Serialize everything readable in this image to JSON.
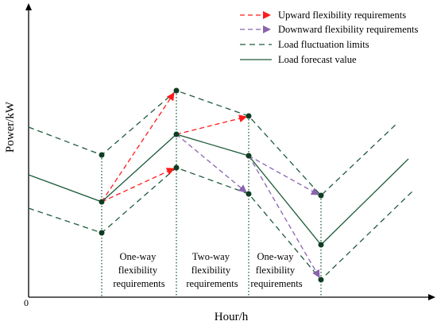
{
  "diagram": {
    "axes": {
      "y_label": "Power/kW",
      "x_label": "Hour/h",
      "origin_label": "0"
    },
    "legend": [
      {
        "label": "Upward flexibility requirements",
        "style": "red-dashed-arrow",
        "color": "#ff1a1a"
      },
      {
        "label": "Downward flexibility requirements",
        "style": "purple-dashed-arrow",
        "color": "#8a63ad"
      },
      {
        "label": "Load fluctuation limits",
        "style": "green-dashed-line",
        "color": "#1e5b3b"
      },
      {
        "label": "Load forecast value",
        "style": "green-solid-line",
        "color": "#1e5b3b"
      }
    ],
    "regions": [
      {
        "lines": [
          "One-way",
          "flexibility",
          "requirements"
        ]
      },
      {
        "lines": [
          "Two-way",
          "flexibility",
          "requirements"
        ]
      },
      {
        "lines": [
          "One-way",
          "flexibility",
          "requirements"
        ]
      }
    ],
    "colors": {
      "axis": "#000000",
      "load_lines": "#1e5b3b",
      "points": "#0f3d22",
      "upward": "#ff1a1a",
      "downward": "#8a63ad"
    }
  }
}
